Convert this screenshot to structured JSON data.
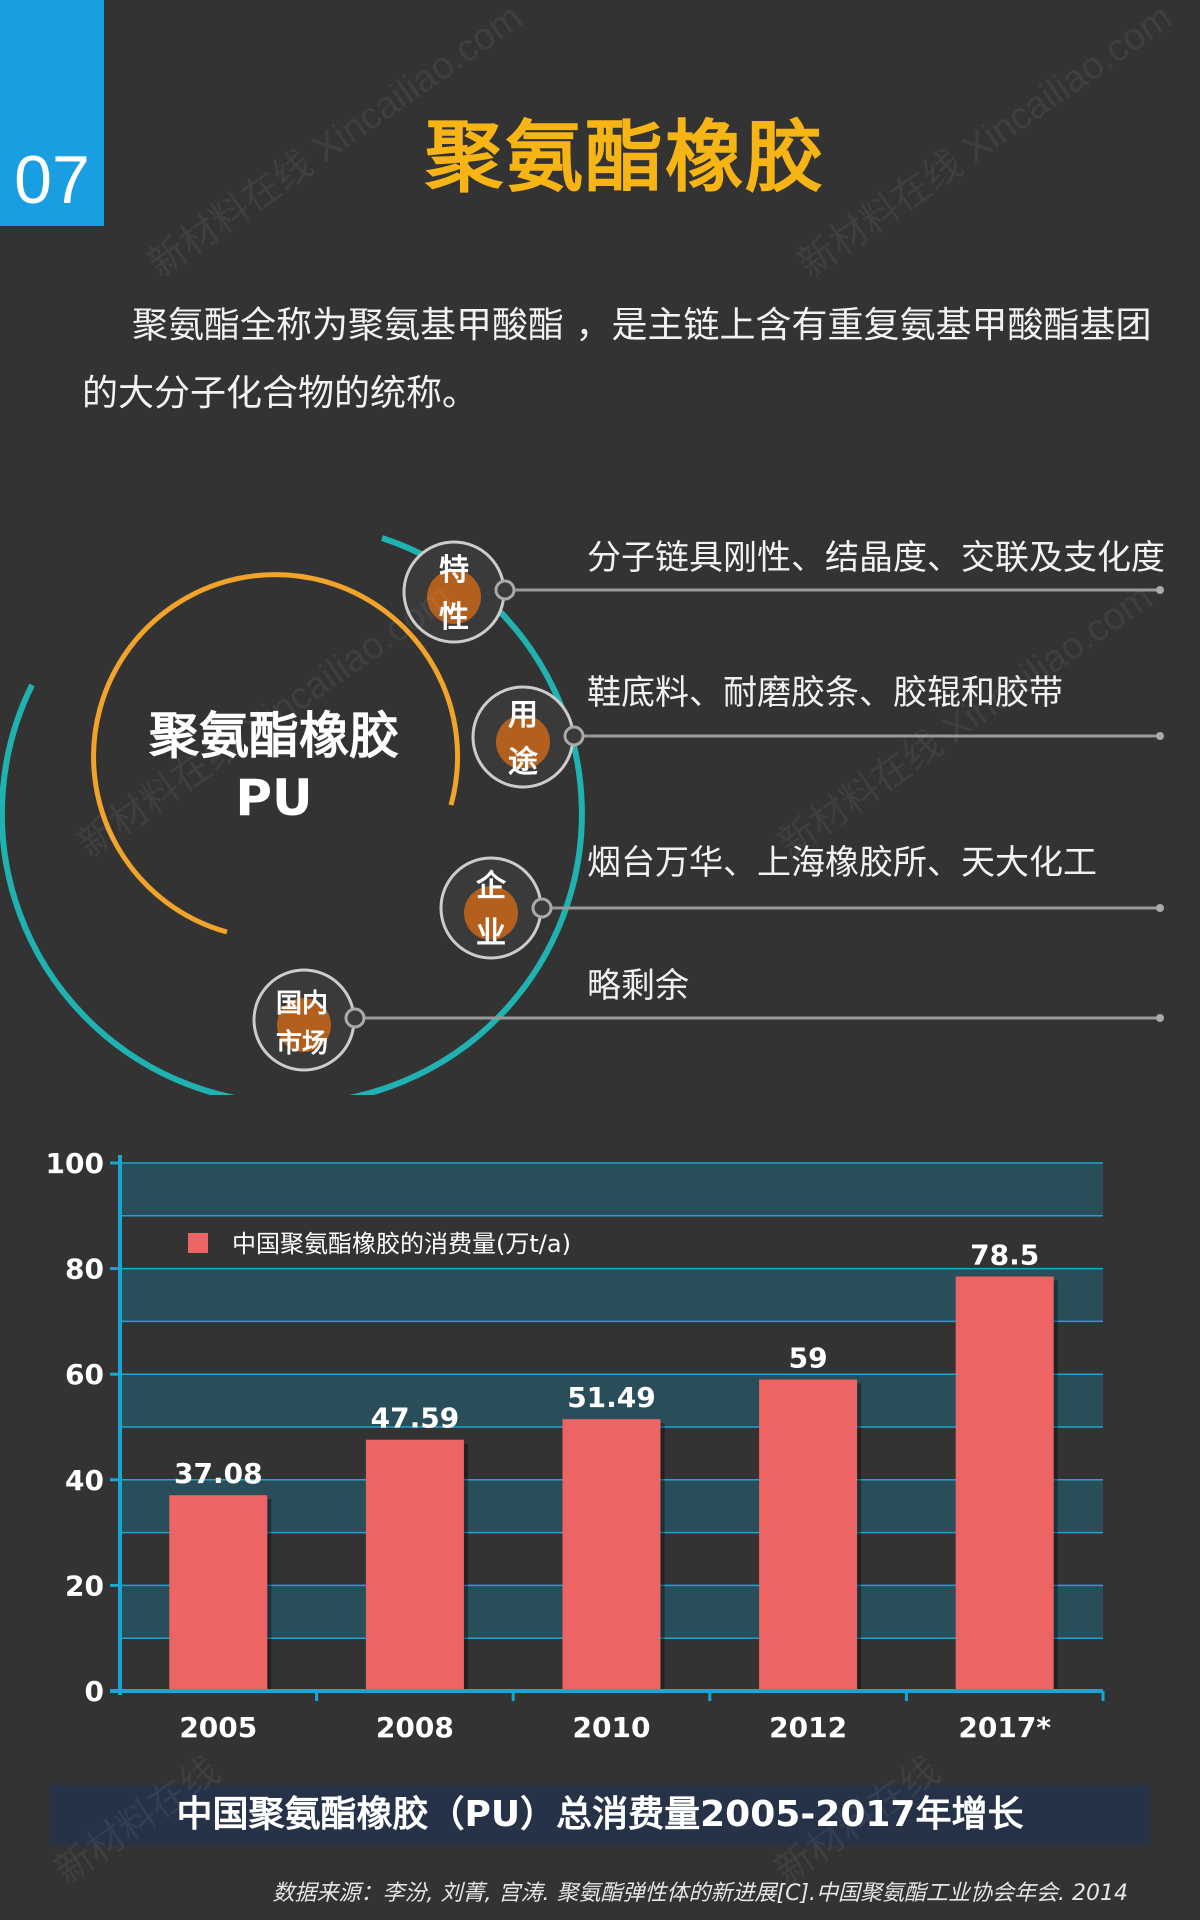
{
  "badge": {
    "number": "07"
  },
  "page_title": "聚氨酯橡胶",
  "intro_text": "聚氨酯全称为聚氨基甲酸酯 ，是主链上含有重复氨基甲酸酯基团的大分子化合物的统称。",
  "diagram": {
    "center_title": "聚氨酯橡胶",
    "center_subtitle": "PU",
    "nodes": [
      {
        "label_line1": "特",
        "label_line2": "性",
        "text": "分子链具刚性、结晶度、交联及支化度"
      },
      {
        "label_line1": "用",
        "label_line2": "途",
        "text": "鞋底料、耐磨胶条、胶辊和胶带"
      },
      {
        "label_line1": "企",
        "label_line2": "业",
        "text": "烟台万华、上海橡胶所、天大化工"
      },
      {
        "label_line1": "国内",
        "label_line2": "市场",
        "text": "略剩余"
      }
    ]
  },
  "chart_data": {
    "type": "bar",
    "categories": [
      "2005",
      "2008",
      "2010",
      "2012",
      "2017*"
    ],
    "series": [
      {
        "name": "中国聚氨酯橡胶的消费量(万t/a)",
        "values": [
          37.08,
          47.59,
          51.49,
          59,
          78.5
        ]
      }
    ],
    "data_labels": [
      "37.08",
      "47.59",
      "51.49",
      "59",
      "78.5"
    ],
    "y_ticks": [
      "0",
      "20",
      "40",
      "60",
      "80",
      "100"
    ],
    "ylim": [
      0,
      100
    ],
    "grid": true,
    "legend_position": "top-left",
    "title": "中国聚氨酯橡胶（PU）总消费量2005-2017年增长",
    "bar_color": "#ec6464",
    "band_color": "#2a4d5a",
    "axis_color": "#1aa6d4"
  },
  "source_text": "数据来源：李汾, 刘菁, 宫涛. 聚氨酯弹性体的新进展[C].中国聚氨酯工业协会年会. 2014"
}
